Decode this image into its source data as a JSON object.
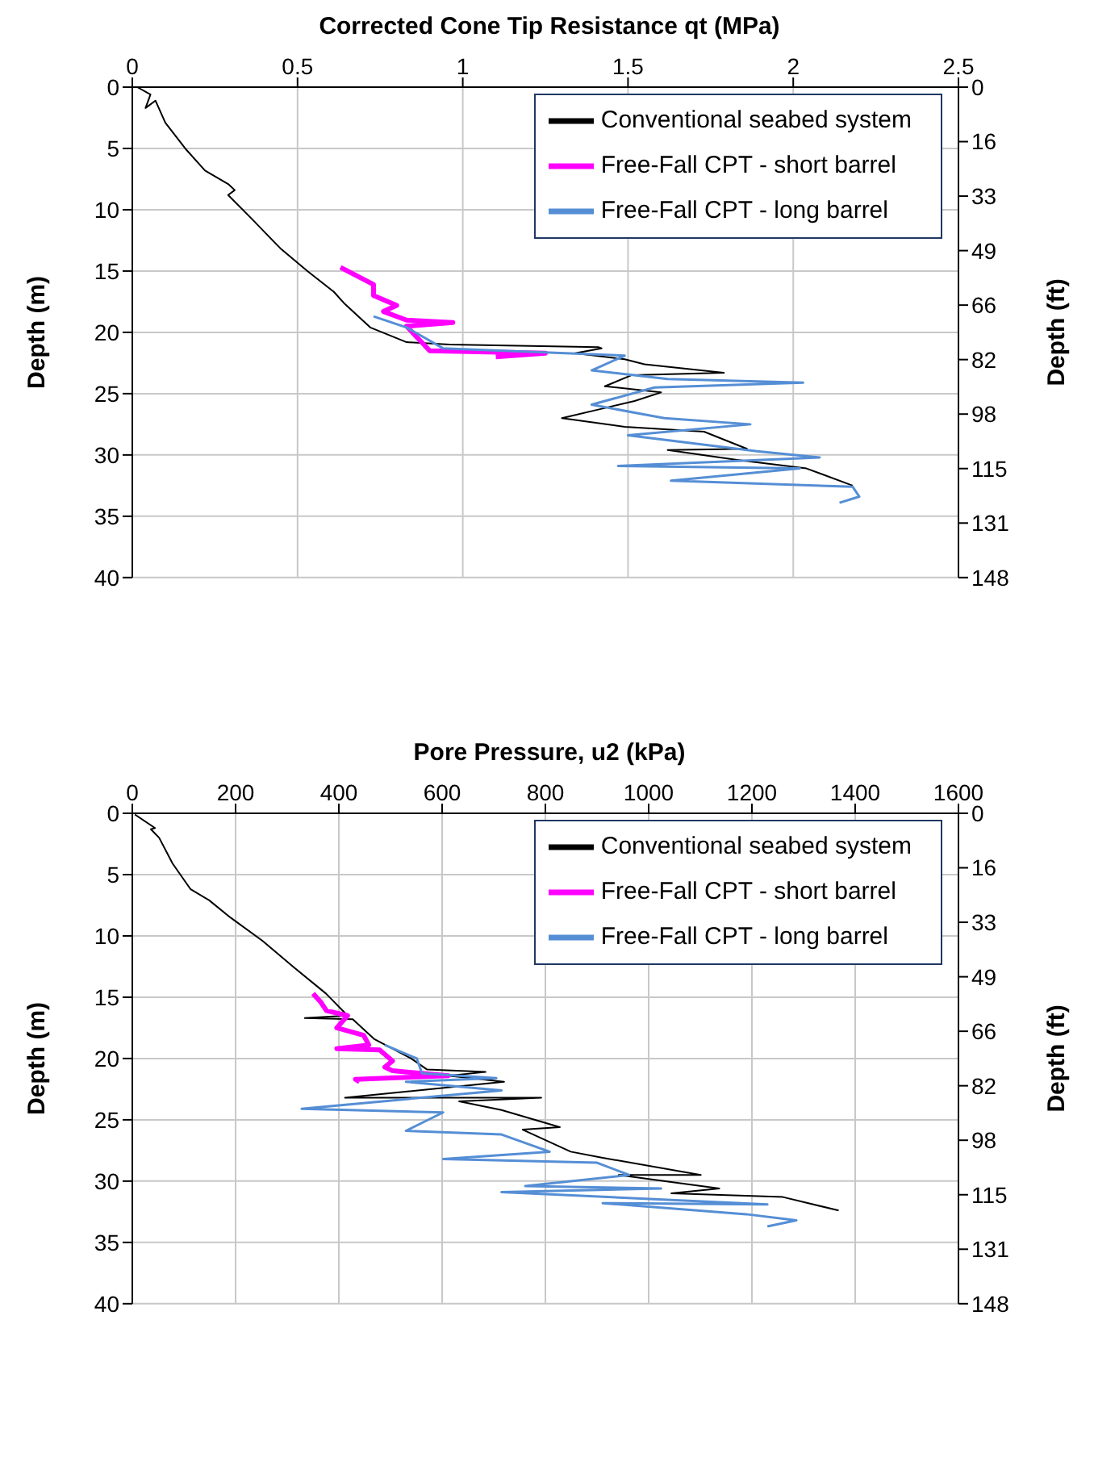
{
  "chart_data": [
    {
      "type": "line",
      "xlabel": "Corrected Cone Tip Resistance qt (MPa)",
      "ylabel": "Depth (m)",
      "y2label": "Depth (ft)",
      "xlim": [
        0,
        2.5
      ],
      "xticks": [
        0,
        0.5,
        1,
        1.5,
        2,
        2.5
      ],
      "ylim": [
        40,
        0
      ],
      "yticks": [
        0,
        5,
        10,
        15,
        20,
        25,
        30,
        35,
        40
      ],
      "y2lim": [
        147.6,
        0
      ],
      "y2ticks": [
        {
          "value": 0,
          "label": "0"
        },
        {
          "value": 16.4,
          "label": "16"
        },
        {
          "value": 32.8,
          "label": "33"
        },
        {
          "value": 49.2,
          "label": "49"
        },
        {
          "value": 65.6,
          "label": "66"
        },
        {
          "value": 82,
          "label": "82"
        },
        {
          "value": 98.4,
          "label": "98"
        },
        {
          "value": 114.8,
          "label": "115"
        },
        {
          "value": 131.2,
          "label": "131"
        },
        {
          "value": 147.6,
          "label": "148"
        }
      ],
      "grid": true,
      "legend": "top right",
      "marker": "none",
      "line_style": "solid",
      "series": [
        {
          "name": "Conventional seabed system",
          "color": "#000000",
          "x": [
            0.015,
            0.055,
            0.04,
            0.07,
            0.1,
            0.16,
            0.22,
            0.29,
            0.31,
            0.29,
            0.36,
            0.45,
            0.53,
            0.61,
            0.64,
            0.72,
            0.83,
            0.96,
            1.41,
            1.42,
            1.34,
            1.49,
            1.55,
            1.79,
            1.51,
            1.43,
            1.6,
            1.52,
            1.41,
            1.3,
            1.49,
            1.73,
            1.86,
            1.62,
            1.83,
            2.04,
            2.18
          ],
          "values": [
            0,
            0.6,
            1.7,
            1.1,
            2.9,
            5,
            6.8,
            7.9,
            8.4,
            8.8,
            10.7,
            13.2,
            15,
            16.7,
            17.6,
            19.6,
            20.8,
            21,
            21.2,
            21.3,
            21.7,
            22.2,
            22.6,
            23.3,
            23.5,
            24.4,
            24.9,
            25.6,
            26.3,
            27,
            27.7,
            28.1,
            29.5,
            29.6,
            30.4,
            31.1,
            32.5
          ]
        },
        {
          "name": "Free-Fall CPT - short barrel",
          "color": "#ff00ff",
          "x": [
            0.63,
            0.73,
            0.73,
            0.8,
            0.76,
            0.83,
            0.97,
            0.83,
            0.9,
            1.25,
            1.1
          ],
          "values": [
            14.7,
            16.1,
            17,
            17.8,
            18.3,
            19,
            19.2,
            19.5,
            21.5,
            21.7,
            22
          ]
        },
        {
          "name": "Free-Fall CPT - long barrel",
          "color": "#558ed5",
          "x": [
            0.73,
            0.83,
            0.94,
            1.49,
            1.39,
            1.62,
            2.03,
            1.58,
            1.39,
            1.61,
            1.87,
            1.5,
            1.89,
            2.08,
            1.47,
            2.02,
            1.63,
            2.18,
            2.2,
            2.14
          ],
          "values": [
            18.7,
            19.6,
            21.3,
            21.9,
            23.1,
            23.8,
            24.1,
            24.5,
            25.9,
            27,
            27.5,
            28.4,
            29.7,
            30.2,
            30.9,
            31.1,
            32.1,
            32.6,
            33.4,
            33.9
          ]
        }
      ]
    },
    {
      "type": "line",
      "xlabel": "Pore Pressure, u2 (kPa)",
      "ylabel": "Depth (m)",
      "y2label": "Depth (ft)",
      "xlim": [
        0,
        1600
      ],
      "xticks": [
        0,
        200,
        400,
        600,
        800,
        1000,
        1200,
        1400,
        1600
      ],
      "ylim": [
        40,
        0
      ],
      "yticks": [
        0,
        5,
        10,
        15,
        20,
        25,
        30,
        35,
        40
      ],
      "y2lim": [
        147.6,
        0
      ],
      "y2ticks": [
        {
          "value": 0,
          "label": "0"
        },
        {
          "value": 16.4,
          "label": "16"
        },
        {
          "value": 32.8,
          "label": "33"
        },
        {
          "value": 49.2,
          "label": "49"
        },
        {
          "value": 65.6,
          "label": "66"
        },
        {
          "value": 82,
          "label": "82"
        },
        {
          "value": 98.4,
          "label": "98"
        },
        {
          "value": 114.8,
          "label": "115"
        },
        {
          "value": 131.2,
          "label": "131"
        },
        {
          "value": 147.6,
          "label": "148"
        }
      ],
      "grid": true,
      "legend": "top right",
      "marker": "none",
      "line_style": "solid",
      "series": [
        {
          "name": "Conventional seabed system",
          "color": "#000000",
          "x": [
            5,
            44,
            36,
            52,
            78,
            113,
            149,
            190,
            252,
            314,
            375,
            417,
            334,
            427,
            468,
            540,
            571,
            684,
            612,
            720,
            412,
            792,
            633,
            715,
            828,
            756,
            849,
            911,
            1101,
            942,
            1137,
            1044,
            1260,
            1368
          ],
          "values": [
            0.1,
            1.2,
            1.3,
            2,
            4.1,
            6.2,
            7.1,
            8.5,
            10.4,
            12.6,
            14.7,
            16.5,
            16.7,
            16.8,
            18.4,
            20,
            20.9,
            21.1,
            21.4,
            21.9,
            23.2,
            23.2,
            23.5,
            24.2,
            25.6,
            25.8,
            27.6,
            28.1,
            29.5,
            29.5,
            30.6,
            31,
            31.3,
            32.4
          ]
        },
        {
          "name": "Free-Fall CPT - short barrel",
          "color": "#ff00ff",
          "x": [
            350,
            365,
            376,
            417,
            396,
            448,
            458,
            396,
            479,
            504,
            489,
            504,
            612,
            432,
            440
          ],
          "values": [
            14.7,
            15.4,
            16.1,
            16.5,
            17.5,
            18.1,
            18.9,
            19.2,
            19.3,
            20.2,
            20.7,
            21,
            21.4,
            21.7,
            21.9
          ]
        },
        {
          "name": "Free-Fall CPT - long barrel",
          "color": "#558ed5",
          "x": [
            489,
            551,
            561,
            705,
            530,
            715,
            328,
            602,
            530,
            715,
            808,
            602,
            900,
            962,
            761,
            1024,
            715,
            1230,
            911,
            1189,
            1286,
            1230
          ],
          "values": [
            18.9,
            20,
            21.2,
            21.6,
            21.9,
            22.6,
            24.1,
            24.4,
            25.9,
            26.2,
            27.6,
            28.2,
            28.5,
            29.5,
            30.4,
            30.6,
            30.9,
            31.9,
            31.8,
            32.7,
            33.2,
            33.7
          ]
        }
      ]
    }
  ]
}
